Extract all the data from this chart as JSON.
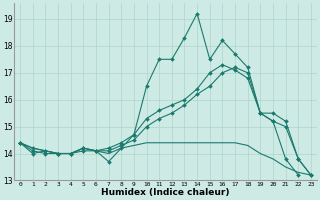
{
  "xlabel": "Humidex (Indice chaleur)",
  "bg_color": "#ceeae4",
  "grid_color": "#aed4ce",
  "line_color": "#1a7a6e",
  "xlim": [
    -0.5,
    23.5
  ],
  "ylim": [
    13,
    19.6
  ],
  "yticks": [
    13,
    14,
    15,
    16,
    17,
    18,
    19
  ],
  "xticks": [
    0,
    1,
    2,
    3,
    4,
    5,
    6,
    7,
    8,
    9,
    10,
    11,
    12,
    13,
    14,
    15,
    16,
    17,
    18,
    19,
    20,
    21,
    22,
    23
  ],
  "line1_x": [
    0,
    1,
    2,
    3,
    4,
    5,
    6,
    7,
    8,
    9,
    10,
    11,
    12,
    13,
    14,
    15,
    16,
    17,
    18,
    19,
    20,
    21,
    22
  ],
  "line1_y": [
    14.4,
    14.0,
    14.1,
    14.0,
    14.0,
    14.1,
    14.1,
    13.7,
    14.2,
    14.7,
    16.5,
    17.5,
    17.5,
    18.3,
    19.2,
    17.5,
    18.2,
    17.7,
    17.2,
    15.5,
    15.2,
    13.8,
    13.2
  ],
  "line1_markers": true,
  "line2_x": [
    0,
    1,
    2,
    3,
    4,
    5,
    6,
    7,
    8,
    9,
    10,
    11,
    12,
    13,
    14,
    15,
    16,
    17,
    18,
    19,
    20,
    21,
    22,
    23
  ],
  "line2_y": [
    14.4,
    14.2,
    14.1,
    14.0,
    14.0,
    14.2,
    14.1,
    14.1,
    14.3,
    14.5,
    15.0,
    15.3,
    15.5,
    15.8,
    16.2,
    16.5,
    17.0,
    17.2,
    17.0,
    15.5,
    15.5,
    15.2,
    13.8,
    13.2
  ],
  "line2_markers": true,
  "line3_x": [
    0,
    1,
    2,
    3,
    4,
    5,
    6,
    7,
    8,
    9,
    10,
    11,
    12,
    13,
    14,
    15,
    16,
    17,
    18,
    19,
    20,
    21,
    22,
    23
  ],
  "line3_y": [
    14.4,
    14.2,
    14.1,
    14.0,
    14.0,
    14.2,
    14.1,
    14.0,
    14.2,
    14.3,
    14.4,
    14.4,
    14.4,
    14.4,
    14.4,
    14.4,
    14.4,
    14.4,
    14.3,
    14.0,
    13.8,
    13.5,
    13.3,
    13.2
  ],
  "line3_markers": false,
  "line4_x": [
    0,
    1,
    2,
    3,
    4,
    5,
    6,
    7,
    8,
    9,
    10,
    11,
    12,
    13,
    14,
    15,
    16,
    17,
    18,
    19,
    20,
    21,
    22,
    23
  ],
  "line4_y": [
    14.4,
    14.1,
    14.0,
    14.0,
    14.0,
    14.2,
    14.1,
    14.2,
    14.4,
    14.7,
    15.3,
    15.6,
    15.8,
    16.0,
    16.4,
    17.0,
    17.3,
    17.1,
    16.8,
    15.5,
    15.2,
    15.0,
    13.8,
    13.2
  ],
  "line4_markers": true
}
